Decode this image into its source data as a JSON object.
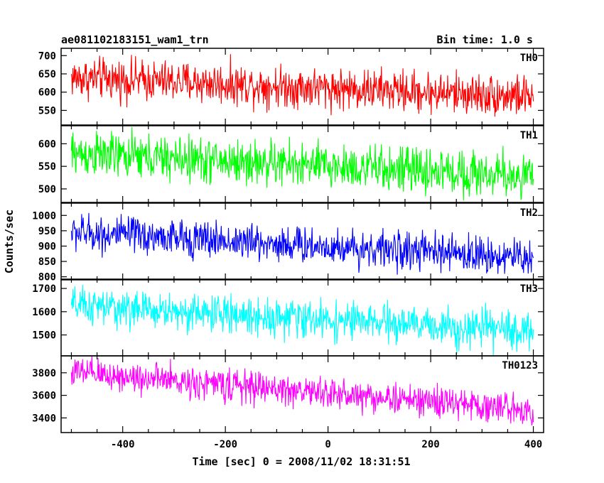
{
  "chart_data": {
    "type": "line",
    "title": "ae081102183151_wam1_trn",
    "subtitle": "Bin time: 1.0 s",
    "xlabel": "Time [sec] 0 = 2008/11/02 18:31:51",
    "ylabel": "Counts/sec",
    "xlim": [
      -520,
      420
    ],
    "x_ticks": [
      -400,
      -200,
      0,
      200,
      400
    ],
    "x_range": [
      -500,
      400
    ],
    "bin": 1,
    "grid": false,
    "legend": "none",
    "panels": [
      {
        "name": "TH0",
        "color": "#ff0000",
        "ylim": [
          510,
          720
        ],
        "yticks": [
          550,
          600,
          650,
          700
        ],
        "start": 640,
        "end": 588,
        "noise": 28
      },
      {
        "name": "TH1",
        "color": "#00ff00",
        "ylim": [
          470,
          640
        ],
        "yticks": [
          500,
          550,
          600
        ],
        "start": 578,
        "end": 528,
        "noise": 25
      },
      {
        "name": "TH2",
        "color": "#0000ff",
        "ylim": [
          790,
          1040
        ],
        "yticks": [
          800,
          850,
          900,
          950,
          1000
        ],
        "start": 945,
        "end": 862,
        "noise": 30
      },
      {
        "name": "TH3",
        "color": "#00ffff",
        "ylim": [
          1410,
          1740
        ],
        "yticks": [
          1500,
          1600,
          1700
        ],
        "start": 1625,
        "end": 1515,
        "noise": 40
      },
      {
        "name": "TH0123",
        "color": "#ff00ff",
        "ylim": [
          3270,
          3950
        ],
        "yticks": [
          3400,
          3600,
          3800
        ],
        "start": 3805,
        "end": 3470,
        "noise": 70
      }
    ]
  }
}
